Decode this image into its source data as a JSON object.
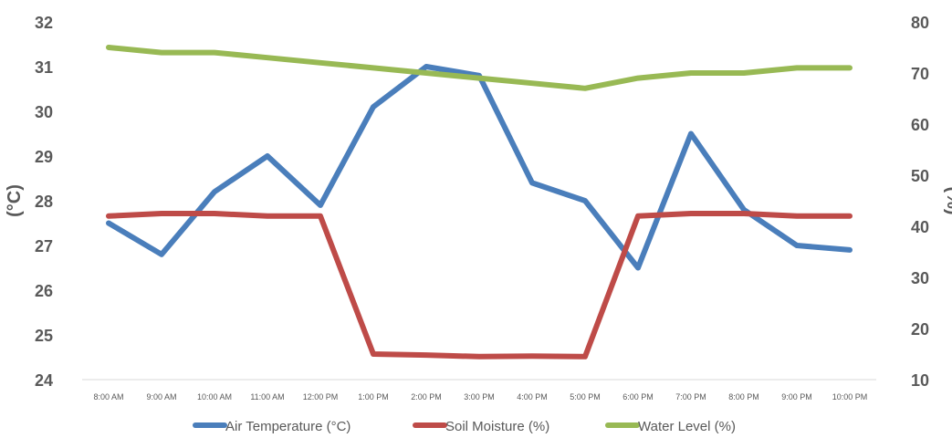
{
  "chart_data": {
    "type": "line",
    "categories": [
      "8:00 AM",
      "9:00 AM",
      "10:00 AM",
      "11:00 AM",
      "12:00 PM",
      "1:00 PM",
      "2:00 PM",
      "3:00 PM",
      "4:00 PM",
      "5:00 PM",
      "6:00 PM",
      "7:00 PM",
      "8:00 PM",
      "9:00 PM",
      "10:00 PM"
    ],
    "y_left": {
      "label": "(°C)",
      "ylim": [
        24,
        32
      ],
      "ticks": [
        24,
        25,
        26,
        27,
        28,
        29,
        30,
        31,
        32
      ]
    },
    "y_right": {
      "label": "(%)",
      "ylim": [
        10,
        80
      ],
      "ticks": [
        10,
        20,
        30,
        40,
        50,
        60,
        70,
        80
      ]
    },
    "grid": false,
    "legend_position": "bottom",
    "series": [
      {
        "name": "Air Temperature (°C)",
        "axis": "left",
        "color": "#4a7ebb",
        "values": [
          27.5,
          26.8,
          28.2,
          29.0,
          27.9,
          30.1,
          31.0,
          30.8,
          28.4,
          28.0,
          26.5,
          29.5,
          27.8,
          27.0,
          26.9
        ]
      },
      {
        "name": "Soil Moisture (%)",
        "axis": "right",
        "color": "#be4b48",
        "values": [
          42,
          42.5,
          42.5,
          42,
          42,
          15,
          14.8,
          14.5,
          14.6,
          14.5,
          42,
          42.5,
          42.5,
          42,
          42
        ]
      },
      {
        "name": "Water Level (%)",
        "axis": "right",
        "color": "#98b954",
        "values": [
          75,
          74,
          74,
          73,
          72,
          71,
          70,
          69,
          68,
          67,
          69,
          70,
          70,
          71,
          71
        ]
      }
    ]
  }
}
